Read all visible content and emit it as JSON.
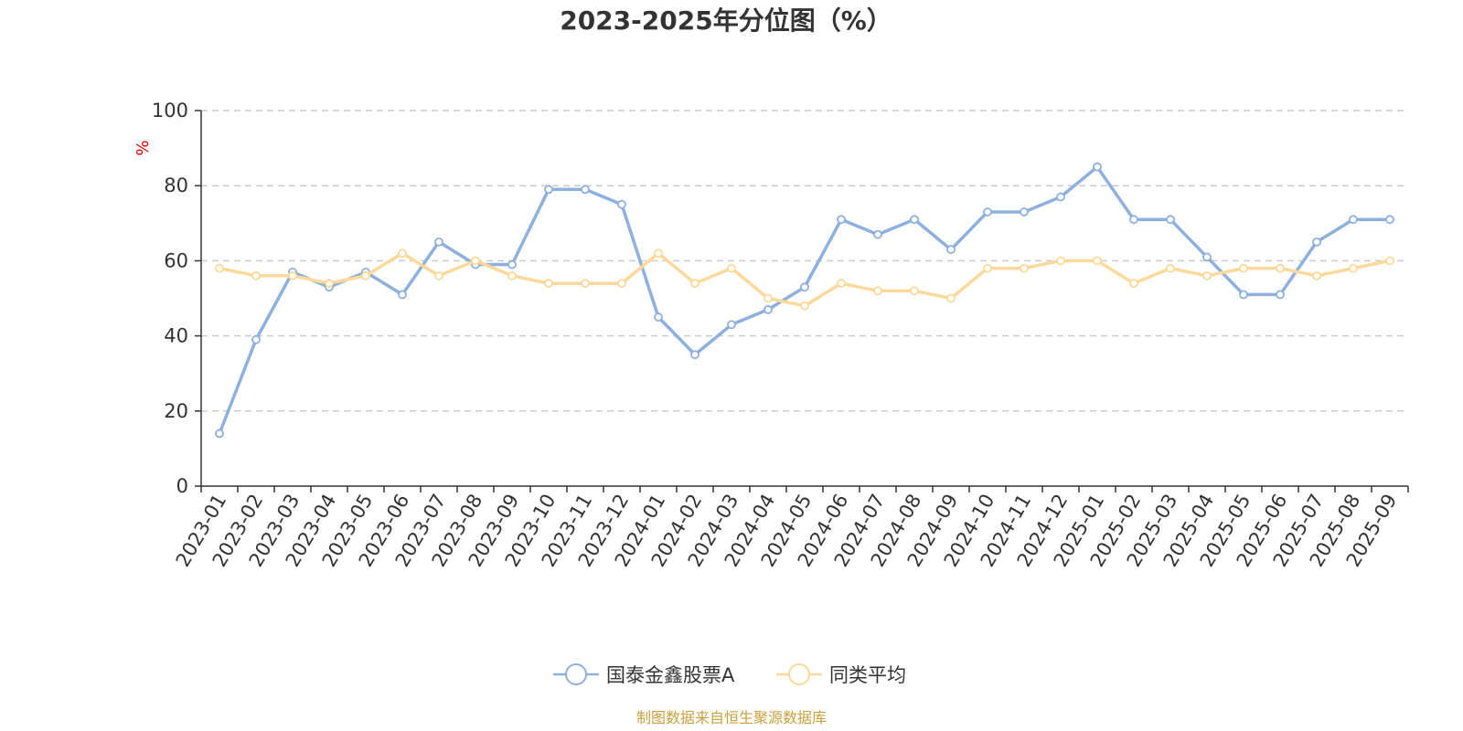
{
  "chart_data": {
    "type": "line",
    "title": "2023-2025年分位图（%）",
    "ylabel": "%",
    "ylim": [
      0,
      100
    ],
    "yticks": [
      0,
      20,
      40,
      60,
      80,
      100
    ],
    "grid": true,
    "legend_position": "bottom-center",
    "categories": [
      "2023-01",
      "2023-02",
      "2023-03",
      "2023-04",
      "2023-05",
      "2023-06",
      "2023-07",
      "2023-08",
      "2023-09",
      "2023-10",
      "2023-11",
      "2023-12",
      "2024-01",
      "2024-02",
      "2024-03",
      "2024-04",
      "2024-05",
      "2024-06",
      "2024-07",
      "2024-08",
      "2024-09",
      "2024-10",
      "2024-11",
      "2024-12",
      "2025-01",
      "2025-02",
      "2025-03",
      "2025-04",
      "2025-05",
      "2025-06",
      "2025-07",
      "2025-08",
      "2025-09"
    ],
    "series": [
      {
        "name": "国泰金鑫股票A",
        "color": "#8EB0DC",
        "values": [
          14,
          39,
          57,
          53,
          57,
          51,
          65,
          59,
          59,
          79,
          79,
          75,
          45,
          35,
          43,
          47,
          53,
          71,
          67,
          71,
          63,
          73,
          73,
          77,
          85,
          71,
          71,
          61,
          51,
          51,
          65,
          71,
          71
        ]
      },
      {
        "name": "同类平均",
        "color": "#FCD99A",
        "values": [
          58,
          56,
          56,
          54,
          56,
          62,
          56,
          60,
          56,
          54,
          54,
          54,
          62,
          54,
          58,
          50,
          48,
          54,
          52,
          52,
          50,
          58,
          58,
          60,
          60,
          54,
          58,
          56,
          58,
          58,
          56,
          58,
          60
        ]
      }
    ]
  },
  "colors": {
    "axis": "#333333",
    "grid": "#CCCCCC",
    "ylabel": "#E00000",
    "source": "#C8A040"
  },
  "source_text": "制图数据来自恒生聚源数据库"
}
